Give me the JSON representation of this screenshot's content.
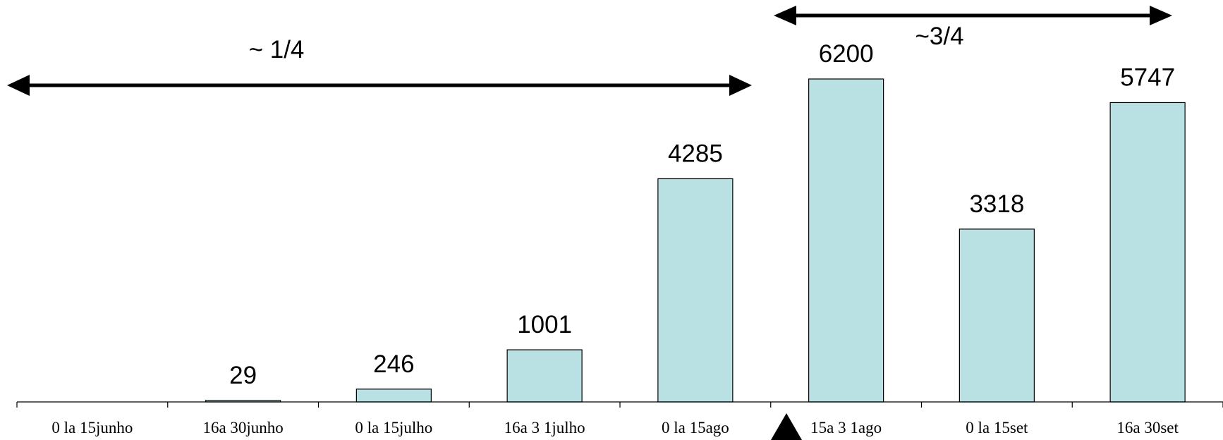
{
  "chart_data": {
    "type": "bar",
    "categories": [
      "0 la 15junho",
      "16a 30junho",
      "0 la 15julho",
      "16a 3 1julho",
      "0 la 15ago",
      "15a 3 1ago",
      "0 la 15set",
      "16a 30set"
    ],
    "values": [
      0,
      29,
      246,
      1001,
      4285,
      6200,
      3318,
      5747
    ],
    "title": "",
    "xlabel": "",
    "ylabel": "",
    "ylim": [
      0,
      6200
    ],
    "grid": false,
    "legend": "none",
    "bar_color": "#b9e0e3",
    "annotations": {
      "left_arrow_label": "~ 1/4",
      "right_arrow_label": "~3/4",
      "marker": "triangle-up-icon"
    }
  }
}
